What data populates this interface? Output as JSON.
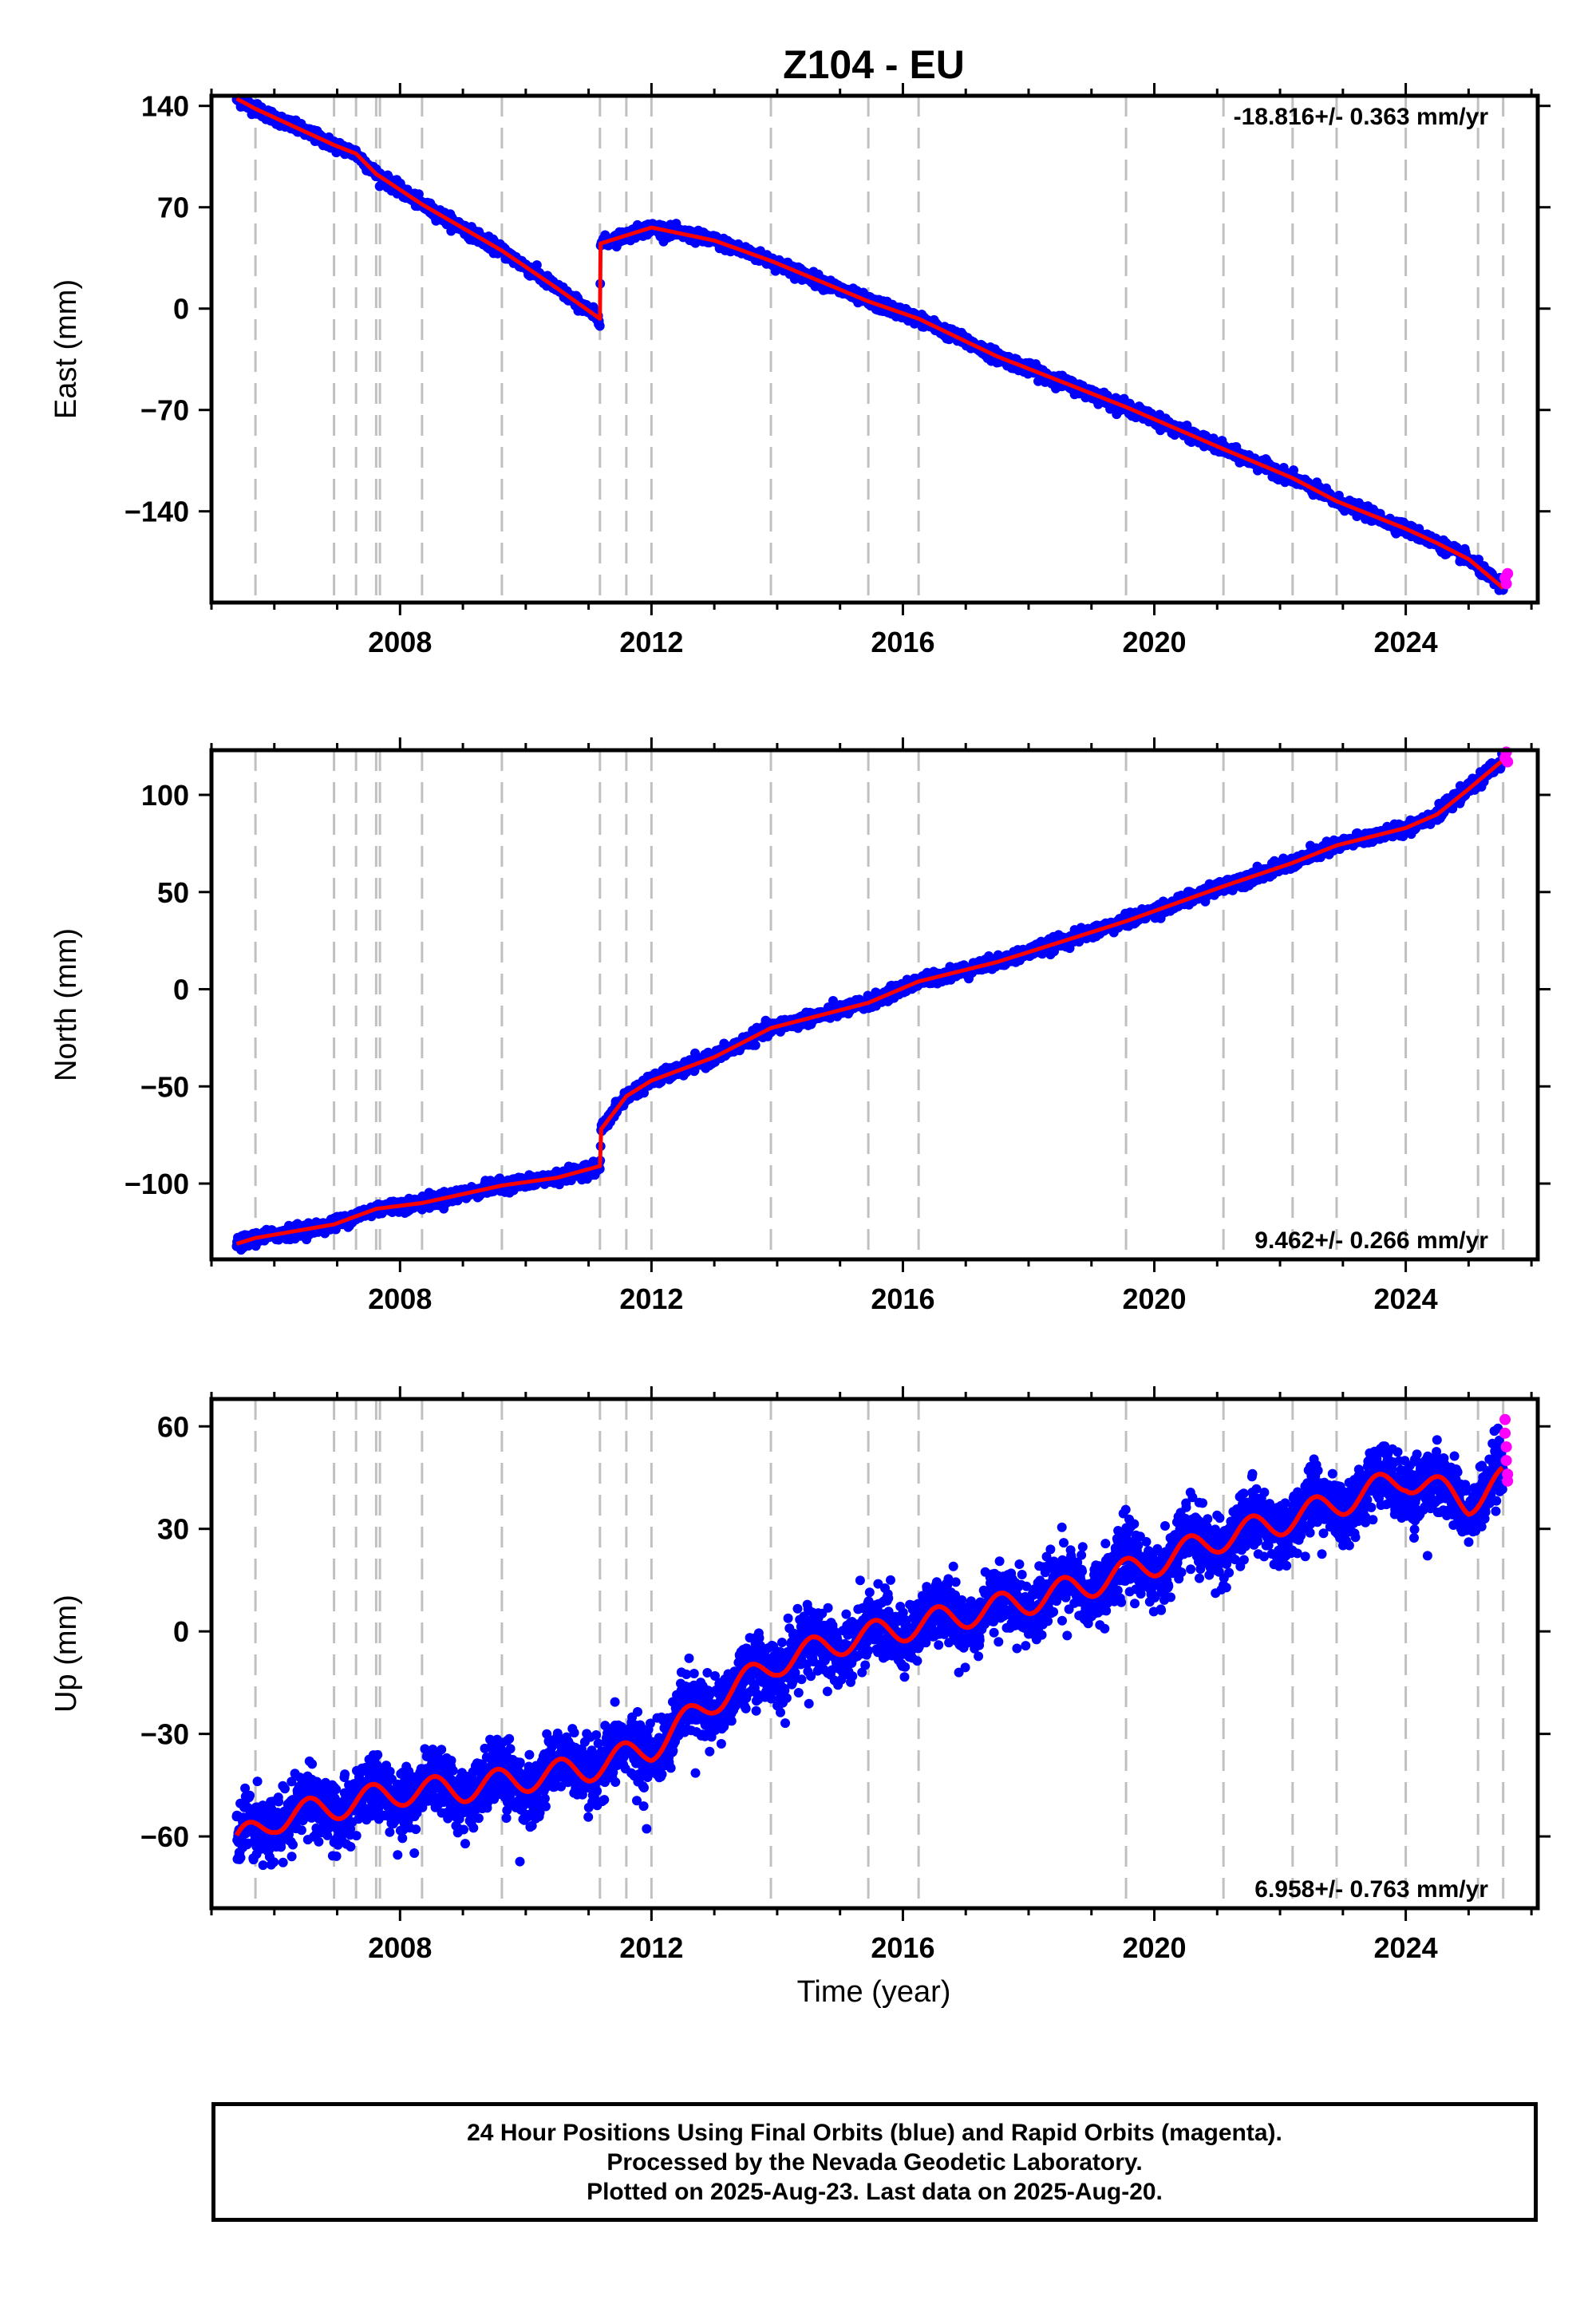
{
  "chart_data": {
    "type": "scatter",
    "title": "Z104 - EU",
    "xlabel": "Time (year)",
    "xlim": [
      2005.0,
      2026.1
    ],
    "x_ticks": [
      "2008",
      "2012",
      "2016",
      "2020",
      "2024"
    ],
    "x_tick_values": [
      2008,
      2012,
      2016,
      2020,
      2024
    ],
    "event_lines_x": [
      2005.7,
      2006.95,
      2007.3,
      2007.62,
      2007.68,
      2008.35,
      2009.62,
      2011.18,
      2011.6,
      2012.0,
      2013.9,
      2015.45,
      2016.25,
      2019.55,
      2021.1,
      2022.2,
      2022.9,
      2024.0,
      2025.15,
      2025.55
    ],
    "legend_note": "Final Orbits (blue), Rapid Orbits (magenta), trend model (red)",
    "colors": {
      "final_orbits": "#0000ff",
      "rapid_orbits": "#ff00ff",
      "model": "#ff0000",
      "event_line": "#c0c0c0",
      "axes": "#000000"
    },
    "panels": [
      {
        "component": "East",
        "ylabel": "East (mm)",
        "ylim": [
          -203,
          147
        ],
        "y_ticks": [
          "140",
          "70",
          "0",
          "−70",
          "−140"
        ],
        "y_tick_values": [
          140,
          70,
          0,
          -70,
          -140
        ],
        "rate": "-18.816+/- 0.363 mm/yr",
        "rate_position": "top-right",
        "scatter_noise_mm": 2.0,
        "trend_x": [
          2005.4,
          2005.7,
          2006.95,
          2007.3,
          2007.62,
          2008.35,
          2009.62,
          2010.5,
          2011.18,
          2011.19,
          2012.0,
          2013.0,
          2013.9,
          2015.45,
          2016.25,
          2017.5,
          2019.55,
          2021.1,
          2022.2,
          2022.9,
          2024.0,
          2024.5,
          2025.0,
          2025.55
        ],
        "trend_y": [
          145,
          138,
          113,
          107,
          93,
          72,
          40,
          14,
          -7,
          45,
          56,
          47,
          33,
          5,
          -7,
          -33,
          -68,
          -97,
          -117,
          -133,
          -152,
          -162,
          -173,
          -193
        ],
        "rapid": {
          "x": [
            2025.58,
            2025.6,
            2025.62
          ],
          "y": [
            -186,
            -190,
            -183
          ]
        }
      },
      {
        "component": "North",
        "ylabel": "North (mm)",
        "ylim": [
          -139,
          123
        ],
        "y_ticks": [
          "100",
          "50",
          "0",
          "−50",
          "−100"
        ],
        "y_tick_values": [
          100,
          50,
          0,
          -50,
          -100
        ],
        "rate": "9.462+/- 0.266 mm/yr",
        "rate_position": "bottom-right",
        "scatter_noise_mm": 1.6,
        "trend_x": [
          2005.4,
          2005.7,
          2006.95,
          2007.62,
          2008.35,
          2009.62,
          2010.5,
          2011.18,
          2011.2,
          2011.6,
          2012.0,
          2013.0,
          2013.9,
          2015.45,
          2016.25,
          2017.5,
          2019.55,
          2021.1,
          2022.2,
          2022.9,
          2024.0,
          2024.5,
          2025.0,
          2025.55
        ],
        "trend_y": [
          -131,
          -128,
          -121,
          -113,
          -110,
          -101,
          -97,
          -91,
          -72,
          -55,
          -47,
          -35,
          -20,
          -7,
          4,
          14,
          35,
          53,
          65,
          74,
          83,
          90,
          103,
          118
        ],
        "rapid": {
          "x": [
            2025.58,
            2025.6,
            2025.62
          ],
          "y": [
            119,
            122,
            117
          ]
        }
      },
      {
        "component": "Up",
        "ylabel": "Up (mm)",
        "ylim": [
          -81,
          68
        ],
        "y_ticks": [
          "60",
          "30",
          "0",
          "−30",
          "−60"
        ],
        "y_tick_values": [
          60,
          30,
          0,
          -30,
          -60
        ],
        "rate": "6.958+/- 0.763 mm/yr",
        "rate_position": "bottom-right",
        "scatter_noise_mm": 4.5,
        "seasonal_amplitude_mm": 4.0,
        "trend_x": [
          2005.4,
          2006.0,
          2007.0,
          2008.0,
          2009.0,
          2010.0,
          2011.0,
          2012.0,
          2013.0,
          2014.0,
          2015.0,
          2016.0,
          2017.0,
          2018.0,
          2019.0,
          2020.0,
          2021.0,
          2022.0,
          2023.0,
          2024.0,
          2025.0,
          2025.55
        ],
        "trend_y": [
          -62,
          -55,
          -51,
          -47,
          -46,
          -43,
          -40,
          -34,
          -20,
          -9,
          -3,
          1,
          5,
          9,
          14,
          20,
          27,
          32,
          38,
          45,
          38,
          44
        ],
        "rapid": {
          "x": [
            2025.58,
            2025.58,
            2025.6,
            2025.6,
            2025.62,
            2025.62
          ],
          "y": [
            62,
            58,
            54,
            50,
            46,
            44
          ]
        }
      }
    ]
  },
  "footer": {
    "line1": "24 Hour Positions Using Final Orbits (blue) and Rapid Orbits (magenta).",
    "line2": "Processed by the Nevada Geodetic Laboratory.",
    "line3": "Plotted on 2025-Aug-23. Last data on 2025-Aug-20."
  }
}
